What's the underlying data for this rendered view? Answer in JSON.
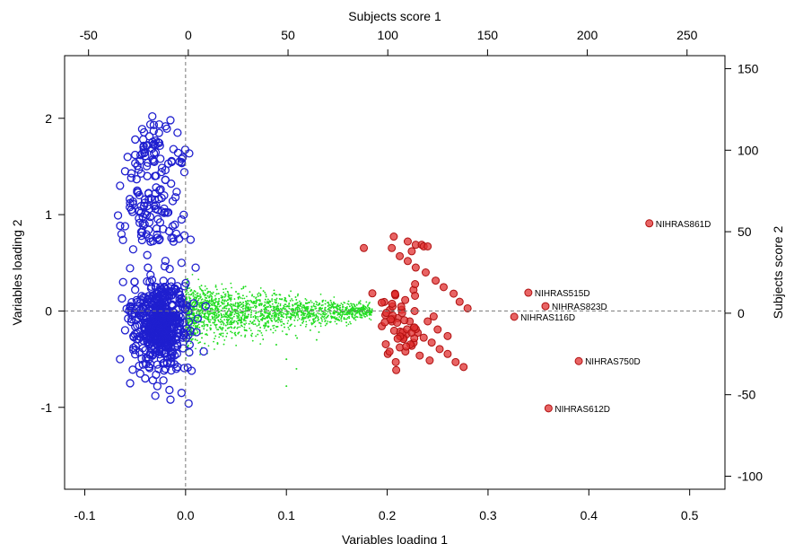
{
  "chart_data": {
    "type": "scatter",
    "title": "",
    "xlabel": "Variables loading 1",
    "ylabel": "Variables loading 2",
    "x2label": "Subjects score 1",
    "y2label": "Subjects score 2",
    "xlim": [
      -0.12,
      0.535
    ],
    "ylim": [
      -1.85,
      2.65
    ],
    "x2lim": [
      -62,
      269
    ],
    "y2lim": [
      -108,
      158
    ],
    "xticks": [
      "-0.1",
      "0.0",
      "0.1",
      "0.2",
      "0.3",
      "0.4",
      "0.5"
    ],
    "yticks": [
      "-1",
      "0",
      "1",
      "2"
    ],
    "x2ticks": [
      "-50",
      "0",
      "50",
      "100",
      "150",
      "200",
      "250"
    ],
    "y2ticks": [
      "-100",
      "-50",
      "0",
      "50",
      "100",
      "150"
    ],
    "reference_lines": {
      "x": 0,
      "y": 0,
      "style": "dashed"
    },
    "grid": false,
    "legend": "none",
    "colors": {
      "variables_blue": "#1f1fcf",
      "variables_green": "#22dd22",
      "subjects_red": "#e03030",
      "reference_line": "#777777"
    },
    "series": [
      {
        "role": "variables_blue",
        "axes": "bottom-left",
        "points": [
          [
            -0.033,
            2.02
          ],
          [
            -0.015,
            1.98
          ],
          [
            -0.008,
            1.85
          ],
          [
            -0.042,
            1.78
          ],
          [
            -0.03,
            1.72
          ],
          [
            -0.012,
            1.68
          ],
          [
            -0.05,
            1.62
          ],
          [
            -0.025,
            1.58
          ],
          [
            -0.006,
            1.55
          ],
          [
            -0.06,
            1.45
          ],
          [
            -0.038,
            1.4
          ],
          [
            -0.02,
            1.36
          ],
          [
            -0.065,
            1.3
          ],
          [
            -0.048,
            1.25
          ],
          [
            -0.03,
            1.22
          ],
          [
            -0.01,
            1.18
          ],
          [
            -0.055,
            1.12
          ],
          [
            -0.036,
            1.06
          ],
          [
            -0.018,
            1.02
          ],
          [
            -0.004,
            0.95
          ],
          [
            -0.06,
            0.88
          ],
          [
            -0.044,
            0.82
          ],
          [
            -0.028,
            0.76
          ],
          [
            -0.012,
            0.72
          ],
          [
            0.005,
            0.74
          ],
          [
            -0.052,
            0.64
          ],
          [
            -0.038,
            0.58
          ],
          [
            -0.02,
            0.52
          ],
          [
            -0.004,
            0.5
          ],
          [
            0.01,
            0.45
          ],
          [
            -0.062,
            0.3
          ],
          [
            -0.05,
            0.22
          ],
          [
            -0.033,
            0.15
          ],
          [
            -0.018,
            0.1
          ],
          [
            -0.006,
            0.12
          ],
          [
            0.008,
            0.08
          ],
          [
            0.02,
            0.05
          ],
          [
            -0.055,
            0.05
          ],
          [
            -0.045,
            -0.05
          ],
          [
            -0.03,
            -0.1
          ],
          [
            -0.015,
            -0.05
          ],
          [
            -0.002,
            -0.12
          ],
          [
            0.012,
            -0.08
          ],
          [
            -0.06,
            -0.2
          ],
          [
            -0.04,
            -0.25
          ],
          [
            -0.025,
            -0.3
          ],
          [
            -0.01,
            -0.28
          ],
          [
            0.004,
            -0.35
          ],
          [
            0.018,
            -0.42
          ],
          [
            -0.065,
            -0.5
          ],
          [
            -0.05,
            -0.45
          ],
          [
            -0.035,
            -0.55
          ],
          [
            -0.02,
            -0.6
          ],
          [
            -0.008,
            -0.58
          ],
          [
            0.006,
            -0.62
          ],
          [
            -0.055,
            -0.75
          ],
          [
            -0.04,
            -0.7
          ],
          [
            -0.028,
            -0.78
          ],
          [
            -0.016,
            -0.82
          ],
          [
            -0.004,
            -0.85
          ],
          [
            -0.03,
            -0.88
          ],
          [
            -0.015,
            -0.92
          ],
          [
            0.003,
            -0.96
          ],
          [
            -0.045,
            -0.65
          ],
          [
            -0.022,
            -0.72
          ]
        ]
      },
      {
        "role": "variables_green",
        "axes": "bottom-left",
        "description_points": [
          [
            0.03,
            0.25
          ],
          [
            0.05,
            0.2
          ],
          [
            0.08,
            0.15
          ],
          [
            0.1,
            0.1
          ],
          [
            0.12,
            0.08
          ],
          [
            0.15,
            0.05
          ],
          [
            0.17,
            0.03
          ],
          [
            0.06,
            -0.2
          ],
          [
            0.09,
            -0.35
          ],
          [
            0.1,
            -0.5
          ],
          [
            0.1,
            -0.78
          ],
          [
            0.11,
            -0.6
          ],
          [
            0.13,
            -0.3
          ],
          [
            0.04,
            -0.15
          ],
          [
            0.07,
            0.05
          ]
        ]
      },
      {
        "role": "subjects_red",
        "axes": "top-right",
        "points": [
          [
            88,
            40
          ],
          [
            103,
            47
          ],
          [
            110,
            44
          ],
          [
            114,
            42
          ],
          [
            117,
            42
          ],
          [
            118,
            41
          ],
          [
            120,
            41
          ],
          [
            102,
            40
          ],
          [
            112,
            38
          ],
          [
            106,
            35
          ],
          [
            110,
            32
          ],
          [
            114,
            28
          ],
          [
            119,
            25
          ],
          [
            124,
            20
          ],
          [
            128,
            16
          ],
          [
            133,
            12
          ],
          [
            136,
            7
          ],
          [
            140,
            3
          ],
          [
            101,
            2
          ],
          [
            105,
            -3
          ],
          [
            111,
            -5
          ],
          [
            113,
            -9
          ],
          [
            115,
            -12
          ],
          [
            118,
            -15
          ],
          [
            122,
            -18
          ],
          [
            126,
            -22
          ],
          [
            130,
            -25
          ],
          [
            134,
            -30
          ],
          [
            138,
            -33
          ],
          [
            108,
            -15
          ],
          [
            112,
            -20
          ],
          [
            100,
            -25
          ],
          [
            104,
            -30
          ],
          [
            120,
            -5
          ],
          [
            125,
            -10
          ],
          [
            130,
            -14
          ],
          [
            116,
            -26
          ],
          [
            121,
            -29
          ],
          [
            106,
            -21
          ],
          [
            97,
            -8
          ],
          [
            123,
            -2
          ]
        ]
      }
    ],
    "annotations": [
      {
        "label": "NIHRAS861D",
        "x": 0.46,
        "y": 0.91
      },
      {
        "label": "NIHRAS515D",
        "x": 0.34,
        "y": 0.19
      },
      {
        "label": "NIHRAS823D",
        "x": 0.357,
        "y": 0.05
      },
      {
        "label": "NIHRAS116D",
        "x": 0.326,
        "y": -0.06
      },
      {
        "label": "NIHRAS750D",
        "x": 0.39,
        "y": -0.52
      },
      {
        "label": "NIHRAS612D",
        "x": 0.36,
        "y": -1.01
      }
    ]
  }
}
